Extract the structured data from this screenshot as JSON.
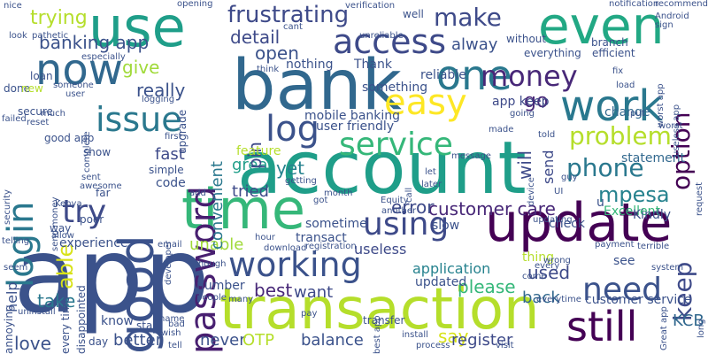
{
  "words": [
    {
      "text": "app",
      "color": "#3b528b"
    },
    {
      "text": "account",
      "color": "#1f9e89"
    },
    {
      "text": "bank",
      "color": "#31688e"
    },
    {
      "text": "transaction",
      "color": "#b5de2b"
    },
    {
      "text": "update",
      "color": "#440154"
    },
    {
      "text": "time",
      "color": "#35b779"
    },
    {
      "text": "use",
      "color": "#1f9e89"
    },
    {
      "text": "even",
      "color": "#22a884"
    },
    {
      "text": "now",
      "color": "#31688e"
    },
    {
      "text": "one",
      "color": "#2a788e"
    },
    {
      "text": "work",
      "color": "#2a788e"
    },
    {
      "text": "good",
      "color": "#3b528b"
    },
    {
      "text": "still",
      "color": "#440154"
    },
    {
      "text": "need",
      "color": "#3b528b"
    },
    {
      "text": "working",
      "color": "#3b528b"
    },
    {
      "text": "password",
      "color": "#481f70"
    },
    {
      "text": "access",
      "color": "#3e4a89"
    },
    {
      "text": "login",
      "color": "#2a788e"
    },
    {
      "text": "easy",
      "color": "#fde725"
    },
    {
      "text": "issue",
      "color": "#2a788e"
    },
    {
      "text": "log",
      "color": "#3b528b"
    },
    {
      "text": "service",
      "color": "#35b779"
    },
    {
      "text": "using",
      "color": "#3e4a89"
    },
    {
      "text": "money",
      "color": "#482878"
    },
    {
      "text": "try",
      "color": "#3e4a89"
    },
    {
      "text": "frustrating",
      "color": "#3e4a89"
    },
    {
      "text": "make",
      "color": "#3e4a89"
    },
    {
      "text": "problem",
      "color": "#b5de2b"
    },
    {
      "text": "phone",
      "color": "#2a788e"
    },
    {
      "text": "option",
      "color": "#440154"
    },
    {
      "text": "keep",
      "color": "#3e4a89"
    },
    {
      "text": "customer care",
      "color": "#482878"
    },
    {
      "text": "mpesa",
      "color": "#26828e"
    },
    {
      "text": "banking app",
      "color": "#3b528b"
    },
    {
      "text": "trying",
      "color": "#b5de2b"
    },
    {
      "text": "detail",
      "color": "#3e4a89"
    },
    {
      "text": "open",
      "color": "#3b528b"
    },
    {
      "text": "go",
      "color": "#482878"
    },
    {
      "text": "alway",
      "color": "#3b528b"
    },
    {
      "text": "give",
      "color": "#a0da39"
    },
    {
      "text": "really",
      "color": "#3b528b"
    },
    {
      "text": "able",
      "color": "#d8e219"
    },
    {
      "text": "tried",
      "color": "#3e4a89"
    },
    {
      "text": "great",
      "color": "#1f9e89"
    },
    {
      "text": "yet",
      "color": "#26828e"
    },
    {
      "text": "error",
      "color": "#3e4a89"
    },
    {
      "text": "unable",
      "color": "#a0da39"
    },
    {
      "text": "best",
      "color": "#482878"
    },
    {
      "text": "useless",
      "color": "#3e4a89"
    },
    {
      "text": "application",
      "color": "#26828e"
    },
    {
      "text": "please",
      "color": "#35b779"
    },
    {
      "text": "used",
      "color": "#3e4a89"
    },
    {
      "text": "back",
      "color": "#31688e"
    },
    {
      "text": "want",
      "color": "#3e4a89"
    },
    {
      "text": "take",
      "color": "#2a788e"
    },
    {
      "text": "love",
      "color": "#3b528b"
    },
    {
      "text": "better",
      "color": "#3b528b"
    },
    {
      "text": "never",
      "color": "#3b528b"
    },
    {
      "text": "OTP",
      "color": "#b5de2b"
    },
    {
      "text": "balance",
      "color": "#3b528b"
    },
    {
      "text": "say",
      "color": "#d8e219"
    },
    {
      "text": "register",
      "color": "#3e4a89"
    },
    {
      "text": "KCB",
      "color": "#31688e"
    },
    {
      "text": "fast",
      "color": "#3e4a89"
    },
    {
      "text": "help",
      "color": "#3b528b"
    },
    {
      "text": "pin",
      "color": "#3e4a89"
    },
    {
      "text": "convenient",
      "color": "#2a788e"
    },
    {
      "text": "will",
      "color": "#3e4a89"
    },
    {
      "text": "mobile banking",
      "color": "#3b528b"
    },
    {
      "text": "user friendly",
      "color": "#3b528b"
    },
    {
      "text": "Thank",
      "color": "#3b528b"
    },
    {
      "text": "nothing",
      "color": "#3b528b"
    },
    {
      "text": "something",
      "color": "#3b528b"
    },
    {
      "text": "reliable",
      "color": "#3b528b"
    },
    {
      "text": "feature",
      "color": "#b5de2b"
    },
    {
      "text": "send",
      "color": "#3e4a89"
    },
    {
      "text": "app keep",
      "color": "#3e4a89"
    },
    {
      "text": "change",
      "color": "#31688e"
    },
    {
      "text": "statement",
      "color": "#31688e"
    },
    {
      "text": "Excellent",
      "color": "#35b779"
    },
    {
      "text": "Kindly",
      "color": "#3b528b"
    },
    {
      "text": "check",
      "color": "#3b528b"
    },
    {
      "text": "slow",
      "color": "#3b528b"
    },
    {
      "text": "transact",
      "color": "#3b528b"
    },
    {
      "text": "sometime",
      "color": "#3b528b"
    },
    {
      "text": "customer service",
      "color": "#3b528b"
    },
    {
      "text": "number",
      "color": "#3b528b"
    },
    {
      "text": "experience",
      "color": "#3b528b"
    },
    {
      "text": "updated",
      "color": "#3b528b"
    },
    {
      "text": "thing",
      "color": "#b5de2b"
    },
    {
      "text": "u",
      "color": "#3b528b"
    },
    {
      "text": "see",
      "color": "#3b528b"
    },
    {
      "text": "code",
      "color": "#3b528b"
    },
    {
      "text": "simple",
      "color": "#3b528b"
    },
    {
      "text": "show",
      "color": "#3b528b"
    },
    {
      "text": "far",
      "color": "#3b528b"
    },
    {
      "text": "poor",
      "color": "#3b528b"
    },
    {
      "text": "way",
      "color": "#3b528b"
    },
    {
      "text": "loan",
      "color": "#3b528b"
    },
    {
      "text": "done",
      "color": "#3b528b"
    },
    {
      "text": "secure",
      "color": "#3b528b"
    },
    {
      "text": "good app",
      "color": "#3b528b"
    },
    {
      "text": "upgrade",
      "color": "#3b528b"
    },
    {
      "text": "well",
      "color": "#3b528b"
    },
    {
      "text": "branch",
      "color": "#3b528b"
    },
    {
      "text": "efficient",
      "color": "#3b528b"
    },
    {
      "text": "without",
      "color": "#3b528b"
    },
    {
      "text": "everything",
      "color": "#3b528b"
    },
    {
      "text": "notification",
      "color": "#3b528b"
    },
    {
      "text": "recommend",
      "color": "#3b528b"
    },
    {
      "text": "Android",
      "color": "#3b528b"
    },
    {
      "text": "opening",
      "color": "#3b528b"
    },
    {
      "text": "nice",
      "color": "#3b528b"
    },
    {
      "text": "especially",
      "color": "#3b528b"
    },
    {
      "text": "new",
      "color": "#b5de2b"
    },
    {
      "text": "someone",
      "color": "#3b528b"
    },
    {
      "text": "user",
      "color": "#3b528b"
    },
    {
      "text": "logging",
      "color": "#3b528b"
    },
    {
      "text": "much",
      "color": "#3b528b"
    },
    {
      "text": "reset",
      "color": "#3b528b"
    },
    {
      "text": "failed",
      "color": "#3b528b"
    },
    {
      "text": "security",
      "color": "#3b528b"
    },
    {
      "text": "awesome",
      "color": "#3b528b"
    },
    {
      "text": "send money",
      "color": "#3b528b"
    },
    {
      "text": "Kenya",
      "color": "#3b528b"
    },
    {
      "text": "telling",
      "color": "#3b528b"
    },
    {
      "text": "allow",
      "color": "#3b528b"
    },
    {
      "text": "seem",
      "color": "#3b528b"
    },
    {
      "text": "uninstall",
      "color": "#3b528b"
    },
    {
      "text": "annoying",
      "color": "#3b528b"
    },
    {
      "text": "every time",
      "color": "#3b528b"
    },
    {
      "text": "disappointed",
      "color": "#3b528b"
    },
    {
      "text": "know",
      "color": "#3b528b"
    },
    {
      "text": "day",
      "color": "#3b528b"
    },
    {
      "text": "star",
      "color": "#3b528b"
    },
    {
      "text": "wish",
      "color": "#3b528b"
    },
    {
      "text": "tell",
      "color": "#3b528b"
    },
    {
      "text": "bad",
      "color": "#3b528b"
    },
    {
      "text": "many",
      "color": "#3b528b"
    },
    {
      "text": "people",
      "color": "#3b528b"
    },
    {
      "text": "hour",
      "color": "#3b528b"
    },
    {
      "text": "download",
      "color": "#3b528b"
    },
    {
      "text": "email",
      "color": "#3b528b"
    },
    {
      "text": "transfer",
      "color": "#3b528b"
    },
    {
      "text": "everytime",
      "color": "#3b528b"
    },
    {
      "text": "come",
      "color": "#3b528b"
    },
    {
      "text": "process",
      "color": "#3b528b"
    },
    {
      "text": "install",
      "color": "#3b528b"
    },
    {
      "text": "visit",
      "color": "#3b528b"
    },
    {
      "text": "wrong",
      "color": "#3b528b"
    },
    {
      "text": "every",
      "color": "#3b528b"
    },
    {
      "text": "system",
      "color": "#3b528b"
    },
    {
      "text": "Great app",
      "color": "#3b528b"
    },
    {
      "text": "long",
      "color": "#3b528b"
    },
    {
      "text": "useless app",
      "color": "#3b528b"
    },
    {
      "text": "worst app",
      "color": "#3b528b"
    },
    {
      "text": "worst",
      "color": "#3b528b"
    },
    {
      "text": "request",
      "color": "#3b528b"
    },
    {
      "text": "terrible",
      "color": "#3b528b"
    },
    {
      "text": "payment",
      "color": "#3b528b"
    },
    {
      "text": "registration",
      "color": "#3b528b"
    },
    {
      "text": "Equity",
      "color": "#3b528b"
    },
    {
      "text": "another",
      "color": "#3b528b"
    },
    {
      "text": "updating",
      "color": "#3b528b"
    },
    {
      "text": "let",
      "color": "#3b528b"
    },
    {
      "text": "later",
      "color": "#3b528b"
    },
    {
      "text": "month",
      "color": "#3b528b"
    },
    {
      "text": "got",
      "color": "#3b528b"
    },
    {
      "text": "getting",
      "color": "#3b528b"
    },
    {
      "text": "developer",
      "color": "#3b528b"
    },
    {
      "text": "add",
      "color": "#3b528b"
    },
    {
      "text": "though",
      "color": "#3b528b"
    },
    {
      "text": "guy",
      "color": "#3b528b"
    },
    {
      "text": "UI",
      "color": "#3b528b"
    },
    {
      "text": "device",
      "color": "#3b528b"
    },
    {
      "text": "call",
      "color": "#3b528b"
    },
    {
      "text": "cant",
      "color": "#3b528b"
    },
    {
      "text": "verification",
      "color": "#3b528b"
    },
    {
      "text": "unreliable",
      "color": "#3b528b"
    },
    {
      "text": "message",
      "color": "#3b528b"
    },
    {
      "text": "made",
      "color": "#3b528b"
    },
    {
      "text": "told",
      "color": "#3b528b"
    },
    {
      "text": "fix",
      "color": "#3b528b"
    },
    {
      "text": "load",
      "color": "#3b528b"
    },
    {
      "text": "put",
      "color": "#3b528b"
    },
    {
      "text": "sign",
      "color": "#3b528b"
    },
    {
      "text": "going",
      "color": "#3b528b"
    },
    {
      "text": "first",
      "color": "#3b528b"
    },
    {
      "text": "complete",
      "color": "#3b528b"
    },
    {
      "text": "think",
      "color": "#3b528b"
    },
    {
      "text": "look",
      "color": "#3b528b"
    },
    {
      "text": "pathetic",
      "color": "#3b528b"
    },
    {
      "text": "name",
      "color": "#3b528b"
    },
    {
      "text": "sent",
      "color": "#3b528b"
    },
    {
      "text": "pay",
      "color": "#3b528b"
    },
    {
      "text": "best app",
      "color": "#3b528b"
    }
  ]
}
